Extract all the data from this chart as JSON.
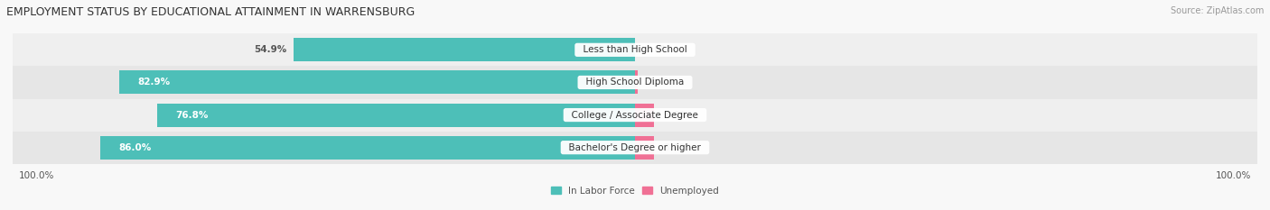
{
  "title": "EMPLOYMENT STATUS BY EDUCATIONAL ATTAINMENT IN WARRENSBURG",
  "source": "Source: ZipAtlas.com",
  "categories": [
    "Less than High School",
    "High School Diploma",
    "College / Associate Degree",
    "Bachelor's Degree or higher"
  ],
  "labor_force_pct": [
    54.9,
    82.9,
    76.8,
    86.0
  ],
  "unemployed_pct": [
    0.0,
    0.4,
    3.0,
    3.1
  ],
  "labor_force_color": "#4DBFB8",
  "unemployed_color": "#F07095",
  "row_bg_colors": [
    "#EFEFEF",
    "#E6E6E6",
    "#EFEFEF",
    "#E6E6E6"
  ],
  "axis_label_left": "100.0%",
  "axis_label_right": "100.0%",
  "bar_height": 0.72,
  "title_fontsize": 9,
  "source_fontsize": 7,
  "bar_label_fontsize": 7.5,
  "category_fontsize": 7.5,
  "legend_fontsize": 7.5,
  "axis_tick_fontsize": 7.5
}
